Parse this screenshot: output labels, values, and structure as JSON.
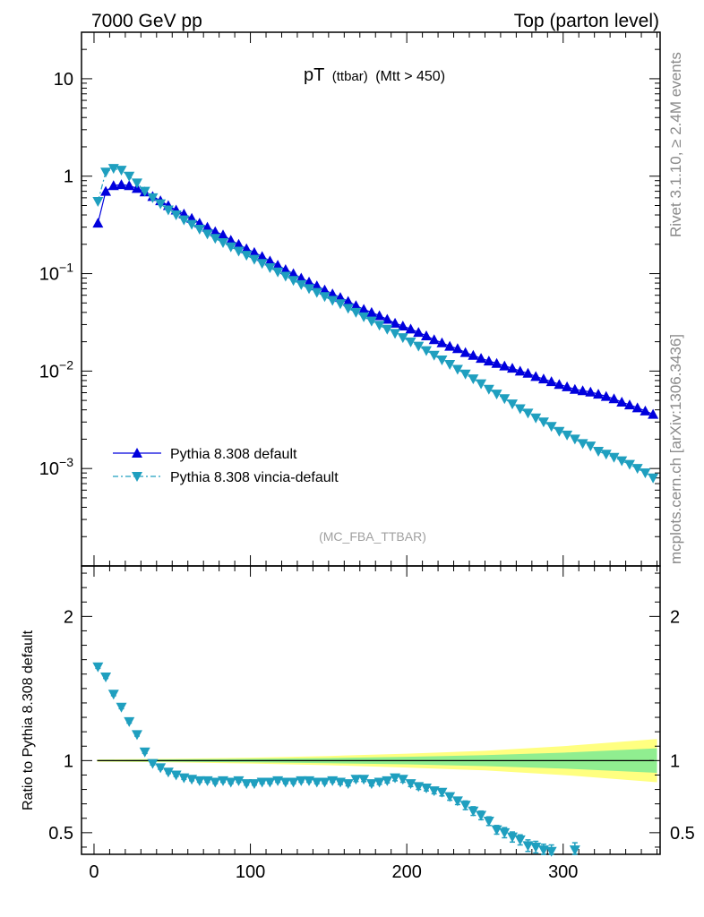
{
  "header": {
    "left": "7000 GeV pp",
    "right": "Top (parton level)"
  },
  "side_labels": {
    "rivet": "Rivet 3.1.10, ≥ 2.4M events",
    "mcplots": "mcplots.cern.ch [arXiv:1306.3436]"
  },
  "plot_title": {
    "main": "pT",
    "sub": "(ttbar)",
    "cut": "(Mtt > 450)"
  },
  "analysis_id": "(MC_FBA_TTBAR)",
  "ratio_ylabel": "Ratio to Pythia 8.308 default",
  "colors": {
    "default": "#0000dd",
    "vincia": "#1f9fbf",
    "band_inner": "#90ee90",
    "band_outer": "#ffff80"
  },
  "chart_data": [
    {
      "type": "line",
      "panel": "main",
      "yscale": "log",
      "xlim": [
        -8,
        362
      ],
      "ylim": [
        0.0001,
        30
      ],
      "yticks": [
        {
          "v": 10,
          "label": "10"
        },
        {
          "v": 1,
          "label": "1"
        },
        {
          "v": 0.1,
          "base": "10",
          "exp": "−1"
        },
        {
          "v": 0.01,
          "base": "10",
          "exp": "−2"
        },
        {
          "v": 0.001,
          "base": "10",
          "exp": "−3"
        }
      ],
      "legend_position": "lower-left",
      "series": [
        {
          "name": "Pythia 8.308 default",
          "marker": "triangle-up",
          "x": [
            2.5,
            7.5,
            12.5,
            17.5,
            22.5,
            27.5,
            32.5,
            37.5,
            42.5,
            47.5,
            52.5,
            57.5,
            62.5,
            67.5,
            72.5,
            77.5,
            82.5,
            87.5,
            92.5,
            97.5,
            102.5,
            107.5,
            112.5,
            117.5,
            122.5,
            127.5,
            132.5,
            137.5,
            142.5,
            147.5,
            152.5,
            157.5,
            162.5,
            167.5,
            172.5,
            177.5,
            182.5,
            187.5,
            192.5,
            197.5,
            202.5,
            207.5,
            212.5,
            217.5,
            222.5,
            227.5,
            232.5,
            237.5,
            242.5,
            247.5,
            252.5,
            257.5,
            262.5,
            267.5,
            272.5,
            277.5,
            282.5,
            287.5,
            292.5,
            297.5,
            302.5,
            307.5,
            312.5,
            317.5,
            322.5,
            327.5,
            332.5,
            337.5,
            342.5,
            347.5,
            352.5,
            357.5
          ],
          "y": [
            0.33,
            0.7,
            0.8,
            0.82,
            0.8,
            0.75,
            0.69,
            0.62,
            0.56,
            0.5,
            0.45,
            0.41,
            0.37,
            0.33,
            0.3,
            0.27,
            0.25,
            0.22,
            0.2,
            0.18,
            0.165,
            0.15,
            0.135,
            0.122,
            0.11,
            0.1,
            0.09,
            0.082,
            0.075,
            0.068,
            0.062,
            0.057,
            0.052,
            0.047,
            0.043,
            0.04,
            0.037,
            0.034,
            0.031,
            0.029,
            0.027,
            0.025,
            0.023,
            0.021,
            0.0195,
            0.018,
            0.017,
            0.0155,
            0.0145,
            0.0135,
            0.0127,
            0.012,
            0.0113,
            0.0107,
            0.01,
            0.0095,
            0.0088,
            0.0083,
            0.0078,
            0.0073,
            0.0069,
            0.0065,
            0.0063,
            0.0061,
            0.0058,
            0.0055,
            0.0052,
            0.0048,
            0.0045,
            0.0042,
            0.0039,
            0.0036
          ]
        },
        {
          "name": "Pythia 8.308 vincia-default",
          "marker": "triangle-down",
          "x": [
            2.5,
            7.5,
            12.5,
            17.5,
            22.5,
            27.5,
            32.5,
            37.5,
            42.5,
            47.5,
            52.5,
            57.5,
            62.5,
            67.5,
            72.5,
            77.5,
            82.5,
            87.5,
            92.5,
            97.5,
            102.5,
            107.5,
            112.5,
            117.5,
            122.5,
            127.5,
            132.5,
            137.5,
            142.5,
            147.5,
            152.5,
            157.5,
            162.5,
            167.5,
            172.5,
            177.5,
            182.5,
            187.5,
            192.5,
            197.5,
            202.5,
            207.5,
            212.5,
            217.5,
            222.5,
            227.5,
            232.5,
            237.5,
            242.5,
            247.5,
            252.5,
            257.5,
            262.5,
            267.5,
            272.5,
            277.5,
            282.5,
            287.5,
            292.5,
            297.5,
            302.5,
            307.5,
            312.5,
            317.5,
            322.5,
            327.5,
            332.5,
            337.5,
            342.5,
            347.5,
            352.5,
            357.5
          ],
          "y": [
            0.55,
            1.1,
            1.2,
            1.15,
            1.0,
            0.85,
            0.7,
            0.6,
            0.52,
            0.45,
            0.4,
            0.355,
            0.32,
            0.285,
            0.255,
            0.23,
            0.208,
            0.188,
            0.17,
            0.154,
            0.14,
            0.127,
            0.115,
            0.104,
            0.094,
            0.085,
            0.077,
            0.07,
            0.064,
            0.058,
            0.053,
            0.049,
            0.044,
            0.04,
            0.036,
            0.0325,
            0.0295,
            0.0268,
            0.0243,
            0.022,
            0.0199,
            0.018,
            0.0162,
            0.0145,
            0.013,
            0.0117,
            0.0104,
            0.0093,
            0.0083,
            0.0074,
            0.0065,
            0.0058,
            0.0052,
            0.0046,
            0.0041,
            0.0037,
            0.0033,
            0.003,
            0.0027,
            0.0024,
            0.0022,
            0.002,
            0.0018,
            0.0017,
            0.0015,
            0.0014,
            0.0013,
            0.0012,
            0.0011,
            0.001,
            0.0009,
            0.0008
          ]
        }
      ]
    },
    {
      "type": "line",
      "panel": "ratio",
      "ylim": [
        0.35,
        2.35
      ],
      "yticks": [
        0.5,
        1,
        2
      ],
      "xticks": [
        0,
        100,
        200,
        300
      ],
      "xlim": [
        -8,
        362
      ],
      "band": {
        "x": [
          0,
          50,
          100,
          150,
          200,
          250,
          300,
          360
        ],
        "inner_half_width": [
          0.005,
          0.008,
          0.012,
          0.018,
          0.026,
          0.038,
          0.055,
          0.085
        ],
        "outer_half_width": [
          0.008,
          0.012,
          0.02,
          0.032,
          0.048,
          0.068,
          0.1,
          0.15
        ]
      },
      "series": [
        {
          "name": "Pythia 8.308 vincia-default",
          "x": [
            2.5,
            7.5,
            12.5,
            17.5,
            22.5,
            27.5,
            32.5,
            37.5,
            42.5,
            47.5,
            52.5,
            57.5,
            62.5,
            67.5,
            72.5,
            77.5,
            82.5,
            87.5,
            92.5,
            97.5,
            102.5,
            107.5,
            112.5,
            117.5,
            122.5,
            127.5,
            132.5,
            137.5,
            142.5,
            147.5,
            152.5,
            157.5,
            162.5,
            167.5,
            172.5,
            177.5,
            182.5,
            187.5,
            192.5,
            197.5,
            202.5,
            207.5,
            212.5,
            217.5,
            222.5,
            227.5,
            232.5,
            237.5,
            242.5,
            247.5,
            252.5,
            257.5,
            262.5,
            267.5,
            272.5,
            277.5,
            282.5,
            287.5,
            292.5,
            297.5,
            302.5,
            307.5
          ],
          "y": [
            1.65,
            1.58,
            1.46,
            1.37,
            1.27,
            1.18,
            1.06,
            0.98,
            0.95,
            0.92,
            0.9,
            0.88,
            0.87,
            0.86,
            0.86,
            0.85,
            0.86,
            0.85,
            0.86,
            0.84,
            0.84,
            0.85,
            0.85,
            0.86,
            0.85,
            0.85,
            0.86,
            0.86,
            0.85,
            0.85,
            0.86,
            0.85,
            0.84,
            0.87,
            0.87,
            0.84,
            0.85,
            0.86,
            0.88,
            0.87,
            0.84,
            0.82,
            0.81,
            0.79,
            0.78,
            0.75,
            0.72,
            0.69,
            0.65,
            0.62,
            0.58,
            0.52,
            0.5,
            0.47,
            0.45,
            0.41,
            0.4,
            0.38,
            0.37,
            0.34,
            0.3,
            0.38
          ],
          "err": [
            0.01,
            0.01,
            0.01,
            0.01,
            0.01,
            0.01,
            0.01,
            0.01,
            0.01,
            0.01,
            0.01,
            0.01,
            0.01,
            0.01,
            0.01,
            0.01,
            0.01,
            0.01,
            0.01,
            0.01,
            0.01,
            0.01,
            0.01,
            0.01,
            0.01,
            0.01,
            0.01,
            0.01,
            0.01,
            0.01,
            0.01,
            0.015,
            0.015,
            0.015,
            0.015,
            0.015,
            0.015,
            0.015,
            0.02,
            0.02,
            0.02,
            0.02,
            0.02,
            0.02,
            0.025,
            0.025,
            0.025,
            0.03,
            0.03,
            0.03,
            0.03,
            0.03,
            0.035,
            0.035,
            0.035,
            0.04,
            0.04,
            0.04,
            0.045,
            0.045,
            0.05,
            0.05
          ]
        }
      ]
    }
  ]
}
